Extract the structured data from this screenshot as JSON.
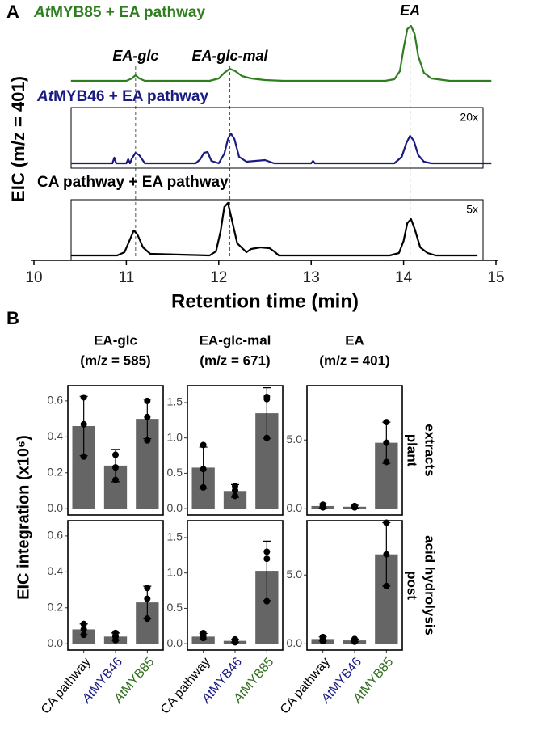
{
  "chart_data": [
    {
      "type": "line",
      "panel_label": "A",
      "xlabel": "Retention time (min)",
      "ylabel": "EIC (m/z = 401)",
      "xlim": [
        10,
        15
      ],
      "xticks": [
        10,
        11,
        12,
        13,
        14,
        15
      ],
      "peaks": [
        {
          "label": "EA-glc",
          "x": 11.1
        },
        {
          "label": "EA-glc-mal",
          "x": 12.12
        },
        {
          "label": "EA",
          "x": 14.07
        }
      ],
      "series": [
        {
          "name_prefix": "At",
          "name": "MYB85 + EA pathway",
          "color": "#2e7d1f",
          "x": [
            10.4,
            11.0,
            11.06,
            11.1,
            11.14,
            11.2,
            11.9,
            12.0,
            12.06,
            12.12,
            12.18,
            12.25,
            12.35,
            12.5,
            12.7,
            13.8,
            13.9,
            13.96,
            14.0,
            14.04,
            14.08,
            14.12,
            14.16,
            14.22,
            14.3,
            14.5,
            14.95
          ],
          "values": [
            0,
            0,
            3,
            7,
            3,
            0,
            0,
            3,
            10,
            15,
            12,
            6,
            3,
            1,
            0,
            0,
            2,
            12,
            40,
            64,
            68,
            58,
            30,
            10,
            3,
            0,
            0
          ]
        },
        {
          "name_prefix": "At",
          "name": "MYB46 + EA pathway",
          "color": "#1a1a80",
          "zoom": "20x",
          "x": [
            10.4,
            10.85,
            10.87,
            10.89,
            11.0,
            11.02,
            11.04,
            11.06,
            11.1,
            11.14,
            11.2,
            11.75,
            11.8,
            11.84,
            11.88,
            11.92,
            12.0,
            12.06,
            12.1,
            12.13,
            12.17,
            12.22,
            12.3,
            12.5,
            12.6,
            13.0,
            13.02,
            13.04,
            13.6,
            13.9,
            13.98,
            14.03,
            14.07,
            14.11,
            14.16,
            14.22,
            14.3,
            14.8,
            14.95
          ],
          "values": [
            0,
            0,
            7,
            0,
            0,
            5,
            0,
            6,
            13,
            10,
            0,
            0,
            5,
            13,
            14,
            3,
            0,
            12,
            30,
            37,
            30,
            8,
            2,
            4,
            0,
            0,
            3,
            0,
            0,
            0,
            8,
            25,
            34,
            28,
            10,
            2,
            0,
            0,
            0
          ]
        },
        {
          "name": "CA pathway + EA pathway",
          "color": "#000000",
          "zoom": "5x",
          "x": [
            10.4,
            10.9,
            10.98,
            11.04,
            11.08,
            11.12,
            11.18,
            11.26,
            11.9,
            11.97,
            12.02,
            12.06,
            12.1,
            12.14,
            12.2,
            12.3,
            12.35,
            12.45,
            12.55,
            12.6,
            12.65,
            13.85,
            13.95,
            14.0,
            14.04,
            14.08,
            14.12,
            14.18,
            14.26,
            14.35,
            14.8
          ],
          "values": [
            0,
            0,
            4,
            20,
            31,
            26,
            10,
            2,
            0,
            5,
            30,
            60,
            65,
            45,
            15,
            4,
            8,
            10,
            9,
            5,
            0,
            0,
            3,
            18,
            40,
            45,
            33,
            10,
            3,
            0,
            0
          ]
        }
      ]
    },
    {
      "type": "bar",
      "panel_label": "B",
      "ylabel": "EIC integration (x10⁶)",
      "bar_color": "#656565",
      "categories": [
        {
          "text": "CA pathway",
          "color": "#000000"
        },
        {
          "prefix": "At",
          "text": "MYB46",
          "color": "#1a1a80"
        },
        {
          "prefix": "At",
          "text": "MYB85",
          "color": "#2e6b1c"
        }
      ],
      "columns": [
        {
          "title": "EA-glc",
          "subtitle": "(m/z = 585)",
          "ylim": [
            -0.035,
            0.685
          ],
          "yticks": [
            {
              "value": 0,
              "label": "0.0"
            },
            {
              "value": 0.2,
              "label": "0.2"
            },
            {
              "value": 0.4,
              "label": "0.4"
            },
            {
              "value": 0.6,
              "label": "0.6"
            }
          ]
        },
        {
          "title": "EA-glc-mal",
          "subtitle": "(m/z = 671)",
          "ylim": [
            -0.09,
            1.74
          ],
          "yticks": [
            {
              "value": 0,
              "label": "0.0"
            },
            {
              "value": 0.5,
              "label": "0.5"
            },
            {
              "value": 1,
              "label": "1.0"
            },
            {
              "value": 1.5,
              "label": "1.5"
            }
          ]
        },
        {
          "title": "EA",
          "subtitle": "(m/z = 401)",
          "ylim": [
            -0.45,
            8.95
          ],
          "yticks": [
            {
              "value": 0,
              "label": "0.0"
            },
            {
              "value": 5,
              "label": "5.0"
            }
          ]
        }
      ],
      "rows": [
        {
          "label": [
            "plant",
            "extracts"
          ]
        },
        {
          "label": [
            "post",
            "acid hydrolysis"
          ]
        }
      ],
      "panels": [
        [
          {
            "values": [
              0.46,
              0.24,
              0.5
            ],
            "errors": [
              0.165,
              0.09,
              0.11
            ],
            "points": [
              [
                0.62,
                0.47,
                0.29
              ],
              [
                0.3,
                0.23,
                0.16
              ],
              [
                0.6,
                0.51,
                0.38
              ]
            ]
          },
          {
            "values": [
              0.58,
              0.25,
              1.35
            ],
            "errors": [
              0.29,
              0.09,
              0.36
            ],
            "points": [
              [
                0.9,
                0.56,
                0.3
              ],
              [
                0.32,
                0.26,
                0.18
              ],
              [
                1.58,
                1.55,
                1.0
              ]
            ]
          },
          {
            "values": [
              0.2,
              0.15,
              4.8
            ],
            "errors": [
              0.15,
              0.1,
              1.5
            ],
            "points": [
              [
                0.3,
                0.2,
                0.1
              ],
              [
                0.2,
                0.15,
                0.1
              ],
              [
                6.3,
                4.8,
                3.4
              ]
            ]
          }
        ],
        [
          {
            "values": [
              0.08,
              0.04,
              0.23
            ],
            "errors": [
              0.03,
              0.02,
              0.09
            ],
            "points": [
              [
                0.11,
                0.08,
                0.05
              ],
              [
                0.06,
                0.04,
                0.02
              ],
              [
                0.31,
                0.25,
                0.14
              ]
            ]
          },
          {
            "values": [
              0.1,
              0.04,
              1.03
            ],
            "errors": [
              0.045,
              0.02,
              0.42
            ],
            "points": [
              [
                0.15,
                0.12,
                0.08
              ],
              [
                0.06,
                0.04,
                0.02
              ],
              [
                1.3,
                1.2,
                0.6
              ]
            ]
          },
          {
            "values": [
              0.35,
              0.25,
              6.5
            ],
            "errors": [
              0.15,
              0.1,
              2.3
            ],
            "points": [
              [
                0.5,
                0.35,
                0.2
              ],
              [
                0.35,
                0.2,
                0.15
              ],
              [
                8.8,
                6.5,
                4.2
              ]
            ]
          }
        ]
      ]
    }
  ]
}
